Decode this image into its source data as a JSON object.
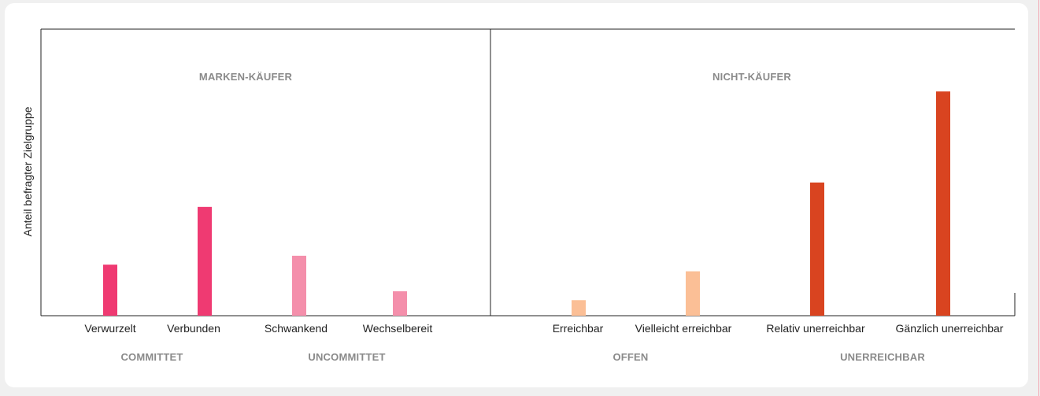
{
  "colors": {
    "committed": "#ef3a72",
    "uncommitted": "#f48fab",
    "offen": "#fbbf96",
    "unerreichbar": "#d94420",
    "frame": "#222222",
    "section_text": "#8a8a8a"
  },
  "chart_data": {
    "type": "bar",
    "ylabel": "Anteil befragter Zielgruppe",
    "ylim": [
      0,
      100
    ],
    "grid": false,
    "panels": [
      {
        "title": "MARKEN-KÄUFER",
        "categories": [
          "Verwurzelt",
          "Verbunden",
          "Schwankend",
          "Wechselbereit"
        ],
        "values": [
          23,
          49,
          27,
          11
        ],
        "color_keys": [
          "committed",
          "committed",
          "uncommitted",
          "uncommitted"
        ],
        "groups": [
          {
            "label": "COMMITTET",
            "span": [
              0,
              1
            ]
          },
          {
            "label": "UNCOMMITTET",
            "span": [
              2,
              3
            ]
          }
        ]
      },
      {
        "title": "NICHT-KÄUFER",
        "categories": [
          "Erreichbar",
          "Vielleicht erreichbar",
          "Relativ unerreichbar",
          "Gänzlich unerreichbar"
        ],
        "values": [
          7,
          20,
          60,
          101
        ],
        "color_keys": [
          "offen",
          "offen",
          "unerreichbar",
          "unerreichbar"
        ],
        "groups": [
          {
            "label": "OFFEN",
            "span": [
              0,
              1
            ]
          },
          {
            "label": "UNERREICHBAR",
            "span": [
              2,
              3
            ]
          }
        ]
      }
    ]
  }
}
